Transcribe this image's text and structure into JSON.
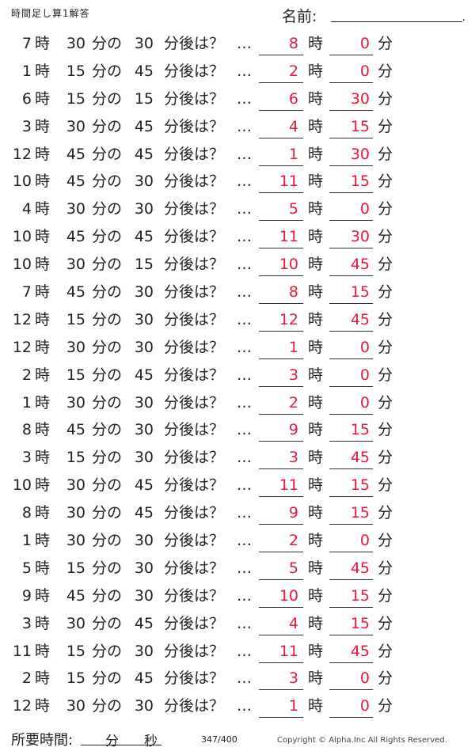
{
  "header": {
    "title": "時間足し算1解答",
    "name_label": "名前:",
    "name_dot": "."
  },
  "units": {
    "ji": "時",
    "fun_no": "分の",
    "phrase": "分後は？",
    "dots": "…",
    "fun": "分"
  },
  "rows": [
    {
      "hour": "7",
      "minute": "30",
      "add": "30",
      "ans_hour": "8",
      "ans_min": "0"
    },
    {
      "hour": "1",
      "minute": "15",
      "add": "45",
      "ans_hour": "2",
      "ans_min": "0"
    },
    {
      "hour": "6",
      "minute": "15",
      "add": "15",
      "ans_hour": "6",
      "ans_min": "30"
    },
    {
      "hour": "3",
      "minute": "30",
      "add": "45",
      "ans_hour": "4",
      "ans_min": "15"
    },
    {
      "hour": "12",
      "minute": "45",
      "add": "45",
      "ans_hour": "1",
      "ans_min": "30"
    },
    {
      "hour": "10",
      "minute": "45",
      "add": "30",
      "ans_hour": "11",
      "ans_min": "15"
    },
    {
      "hour": "4",
      "minute": "30",
      "add": "30",
      "ans_hour": "5",
      "ans_min": "0"
    },
    {
      "hour": "10",
      "minute": "45",
      "add": "45",
      "ans_hour": "11",
      "ans_min": "30"
    },
    {
      "hour": "10",
      "minute": "30",
      "add": "15",
      "ans_hour": "10",
      "ans_min": "45"
    },
    {
      "hour": "7",
      "minute": "45",
      "add": "30",
      "ans_hour": "8",
      "ans_min": "15"
    },
    {
      "hour": "12",
      "minute": "15",
      "add": "30",
      "ans_hour": "12",
      "ans_min": "45"
    },
    {
      "hour": "12",
      "minute": "30",
      "add": "30",
      "ans_hour": "1",
      "ans_min": "0"
    },
    {
      "hour": "2",
      "minute": "15",
      "add": "45",
      "ans_hour": "3",
      "ans_min": "0"
    },
    {
      "hour": "1",
      "minute": "30",
      "add": "30",
      "ans_hour": "2",
      "ans_min": "0"
    },
    {
      "hour": "8",
      "minute": "45",
      "add": "30",
      "ans_hour": "9",
      "ans_min": "15"
    },
    {
      "hour": "3",
      "minute": "15",
      "add": "30",
      "ans_hour": "3",
      "ans_min": "45"
    },
    {
      "hour": "10",
      "minute": "30",
      "add": "45",
      "ans_hour": "11",
      "ans_min": "15"
    },
    {
      "hour": "8",
      "minute": "30",
      "add": "45",
      "ans_hour": "9",
      "ans_min": "15"
    },
    {
      "hour": "1",
      "minute": "30",
      "add": "30",
      "ans_hour": "2",
      "ans_min": "0"
    },
    {
      "hour": "5",
      "minute": "15",
      "add": "30",
      "ans_hour": "5",
      "ans_min": "45"
    },
    {
      "hour": "9",
      "minute": "45",
      "add": "30",
      "ans_hour": "10",
      "ans_min": "15"
    },
    {
      "hour": "3",
      "minute": "30",
      "add": "45",
      "ans_hour": "4",
      "ans_min": "15"
    },
    {
      "hour": "11",
      "minute": "15",
      "add": "30",
      "ans_hour": "11",
      "ans_min": "45"
    },
    {
      "hour": "2",
      "minute": "15",
      "add": "45",
      "ans_hour": "3",
      "ans_min": "0"
    },
    {
      "hour": "12",
      "minute": "30",
      "add": "30",
      "ans_hour": "1",
      "ans_min": "0"
    }
  ],
  "footer": {
    "label": "所要時間:",
    "fun": "分",
    "byou": "秒",
    "page": "347/400",
    "copyright": "Copyright ©  Alpha.Inc All Rights Reserved."
  },
  "colors": {
    "answer": "#e8193c",
    "text": "#222222"
  }
}
